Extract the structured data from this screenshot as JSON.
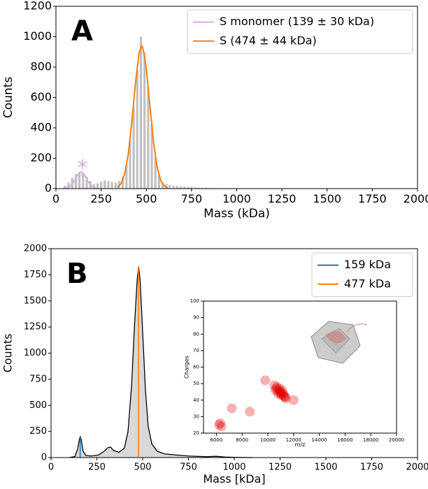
{
  "chart_data": [
    {
      "type": "histogram",
      "panel_label": "A",
      "xlabel": "Mass (kDa)",
      "ylabel": "Counts",
      "annotation": "*",
      "xlim": [
        0,
        2000
      ],
      "ylim": [
        0,
        1200
      ],
      "xticks": [
        0,
        250,
        500,
        750,
        1000,
        1250,
        1500,
        1750,
        2000
      ],
      "yticks": [
        0,
        200,
        400,
        600,
        800,
        1000,
        1200
      ],
      "bar_color": "#b0b0b0",
      "bins": [
        40,
        60,
        80,
        100,
        120,
        140,
        160,
        180,
        200,
        220,
        240,
        260,
        280,
        300,
        320,
        340,
        360,
        380,
        400,
        420,
        440,
        460,
        480,
        500,
        520,
        540,
        560,
        580,
        600,
        620,
        640,
        660,
        680,
        700,
        720,
        740,
        760,
        780,
        800,
        820,
        840,
        860,
        880,
        900,
        920,
        940,
        960,
        980,
        1000,
        1020,
        1040
      ],
      "counts": [
        20,
        40,
        70,
        95,
        110,
        105,
        80,
        50,
        30,
        35,
        45,
        55,
        50,
        45,
        40,
        50,
        80,
        160,
        320,
        540,
        780,
        1000,
        900,
        670,
        420,
        210,
        90,
        40,
        30,
        25,
        20,
        18,
        15,
        12,
        10,
        10,
        8,
        6,
        5,
        6,
        4,
        5,
        3,
        4,
        3,
        3,
        2,
        3,
        2,
        2
      ],
      "legend": "upper right",
      "series": [
        {
          "name": "S monomer (139 ± 30 kDa)",
          "color": "#d5aee0",
          "x": [
            40,
            60,
            80,
            100,
            120,
            140,
            160,
            180,
            200,
            220,
            240
          ],
          "values": [
            0.5,
            3.4,
            16,
            47,
            90,
            110,
            86,
            43,
            14,
            2.9,
            0.4
          ]
        },
        {
          "name": "S (474 ± 44 kDa)",
          "color": "#ff7f0e",
          "x": [
            340,
            360,
            380,
            400,
            420,
            440,
            460,
            474,
            480,
            500,
            520,
            540,
            560,
            580,
            600,
            620
          ],
          "values": [
            9,
            33,
            96,
            228,
            443,
            697,
            894,
            940,
            931,
            790,
            544,
            305,
            139,
            52,
            16,
            4
          ]
        }
      ]
    },
    {
      "type": "area",
      "panel_label": "B",
      "xlabel": "Mass [kDa]",
      "ylabel": "Counts",
      "xlim": [
        0,
        2000
      ],
      "ylim": [
        0,
        2000
      ],
      "xticks": [
        0,
        250,
        500,
        750,
        1000,
        1250,
        1500,
        1750,
        2000
      ],
      "yticks": [
        0,
        250,
        500,
        750,
        1000,
        1250,
        1500,
        1750,
        2000
      ],
      "fill": "#d9d9d9",
      "color": "#000000",
      "x": [
        100,
        130,
        145,
        155,
        160,
        165,
        175,
        190,
        220,
        260,
        290,
        310,
        325,
        340,
        370,
        400,
        420,
        440,
        455,
        470,
        478,
        486,
        500,
        515,
        530,
        550,
        580,
        620,
        680,
        750,
        850,
        900,
        950,
        1000,
        1100
      ],
      "values": [
        0,
        10,
        80,
        180,
        200,
        170,
        60,
        20,
        15,
        25,
        60,
        95,
        100,
        70,
        50,
        90,
        250,
        700,
        1250,
        1700,
        1830,
        1700,
        1200,
        650,
        300,
        130,
        60,
        35,
        25,
        15,
        8,
        12,
        5,
        2,
        0
      ],
      "legend": "upper right",
      "lines": [
        {
          "name": "159 kDa",
          "color": "#1f77b4",
          "x": 159,
          "value": 200
        },
        {
          "name": "477 kDa",
          "color": "#ff7f0e",
          "x": 477,
          "value": 1830
        }
      ]
    },
    {
      "type": "scatter",
      "xlabel": "m/z",
      "ylabel": "Charges",
      "xlim": [
        5000,
        20000
      ],
      "ylim": [
        20,
        100
      ],
      "xticks": [
        6000,
        8000,
        10000,
        12000,
        14000,
        16000,
        18000,
        20000
      ],
      "yticks": [
        20,
        30,
        40,
        50,
        60,
        70,
        80,
        90,
        100
      ],
      "color": "#e00000",
      "x": [
        10600,
        10800,
        11000,
        11200,
        10900,
        11100,
        10700,
        11300,
        11000,
        10500,
        11400,
        10800,
        11200,
        10950,
        11050,
        10650,
        11350,
        6200,
        6400,
        6300,
        9800,
        12000,
        8600,
        7200
      ],
      "y": [
        46,
        44,
        45,
        43,
        47,
        46,
        48,
        42,
        44,
        49,
        41,
        46,
        44,
        45,
        43,
        47,
        42,
        25,
        24,
        26,
        52,
        40,
        33,
        35
      ]
    }
  ]
}
